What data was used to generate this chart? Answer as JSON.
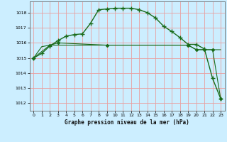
{
  "title": "Graphe pression niveau de la mer (hPa)",
  "bg_color": "#cceeff",
  "grid_color": "#e8a0a0",
  "line_color": "#1a6b1a",
  "xlim": [
    -0.5,
    23.5
  ],
  "ylim": [
    1011.5,
    1018.75
  ],
  "yticks": [
    1012,
    1013,
    1014,
    1015,
    1016,
    1017,
    1018
  ],
  "xticks": [
    0,
    1,
    2,
    3,
    4,
    5,
    6,
    7,
    8,
    9,
    10,
    11,
    12,
    13,
    14,
    15,
    16,
    17,
    18,
    19,
    20,
    21,
    22,
    23
  ],
  "series1_x": [
    0,
    1,
    2,
    3,
    4,
    5,
    6,
    7,
    8,
    9,
    10,
    11,
    12,
    13,
    14,
    15,
    16,
    17,
    18,
    19,
    20,
    21,
    22,
    23
  ],
  "series1_y": [
    1015.0,
    1015.3,
    1015.8,
    1016.15,
    1016.45,
    1016.55,
    1016.6,
    1017.3,
    1018.2,
    1018.25,
    1018.3,
    1018.3,
    1018.3,
    1018.2,
    1018.0,
    1017.65,
    1017.1,
    1016.75,
    1016.35,
    1015.9,
    1015.9,
    1015.6,
    1013.65,
    1012.3
  ],
  "series2_x": [
    0,
    1,
    2,
    19,
    20,
    21,
    22,
    23
  ],
  "series2_y": [
    1015.0,
    1015.75,
    1015.85,
    1015.85,
    1015.55,
    1015.55,
    1015.55,
    1015.55
  ],
  "series3_x": [
    0,
    2,
    3,
    9,
    19,
    20,
    21,
    22,
    23
  ],
  "series3_y": [
    1015.0,
    1015.85,
    1016.0,
    1015.85,
    1015.85,
    1015.55,
    1015.55,
    1015.55,
    1012.3
  ],
  "figsize": [
    3.2,
    2.0
  ],
  "dpi": 100
}
